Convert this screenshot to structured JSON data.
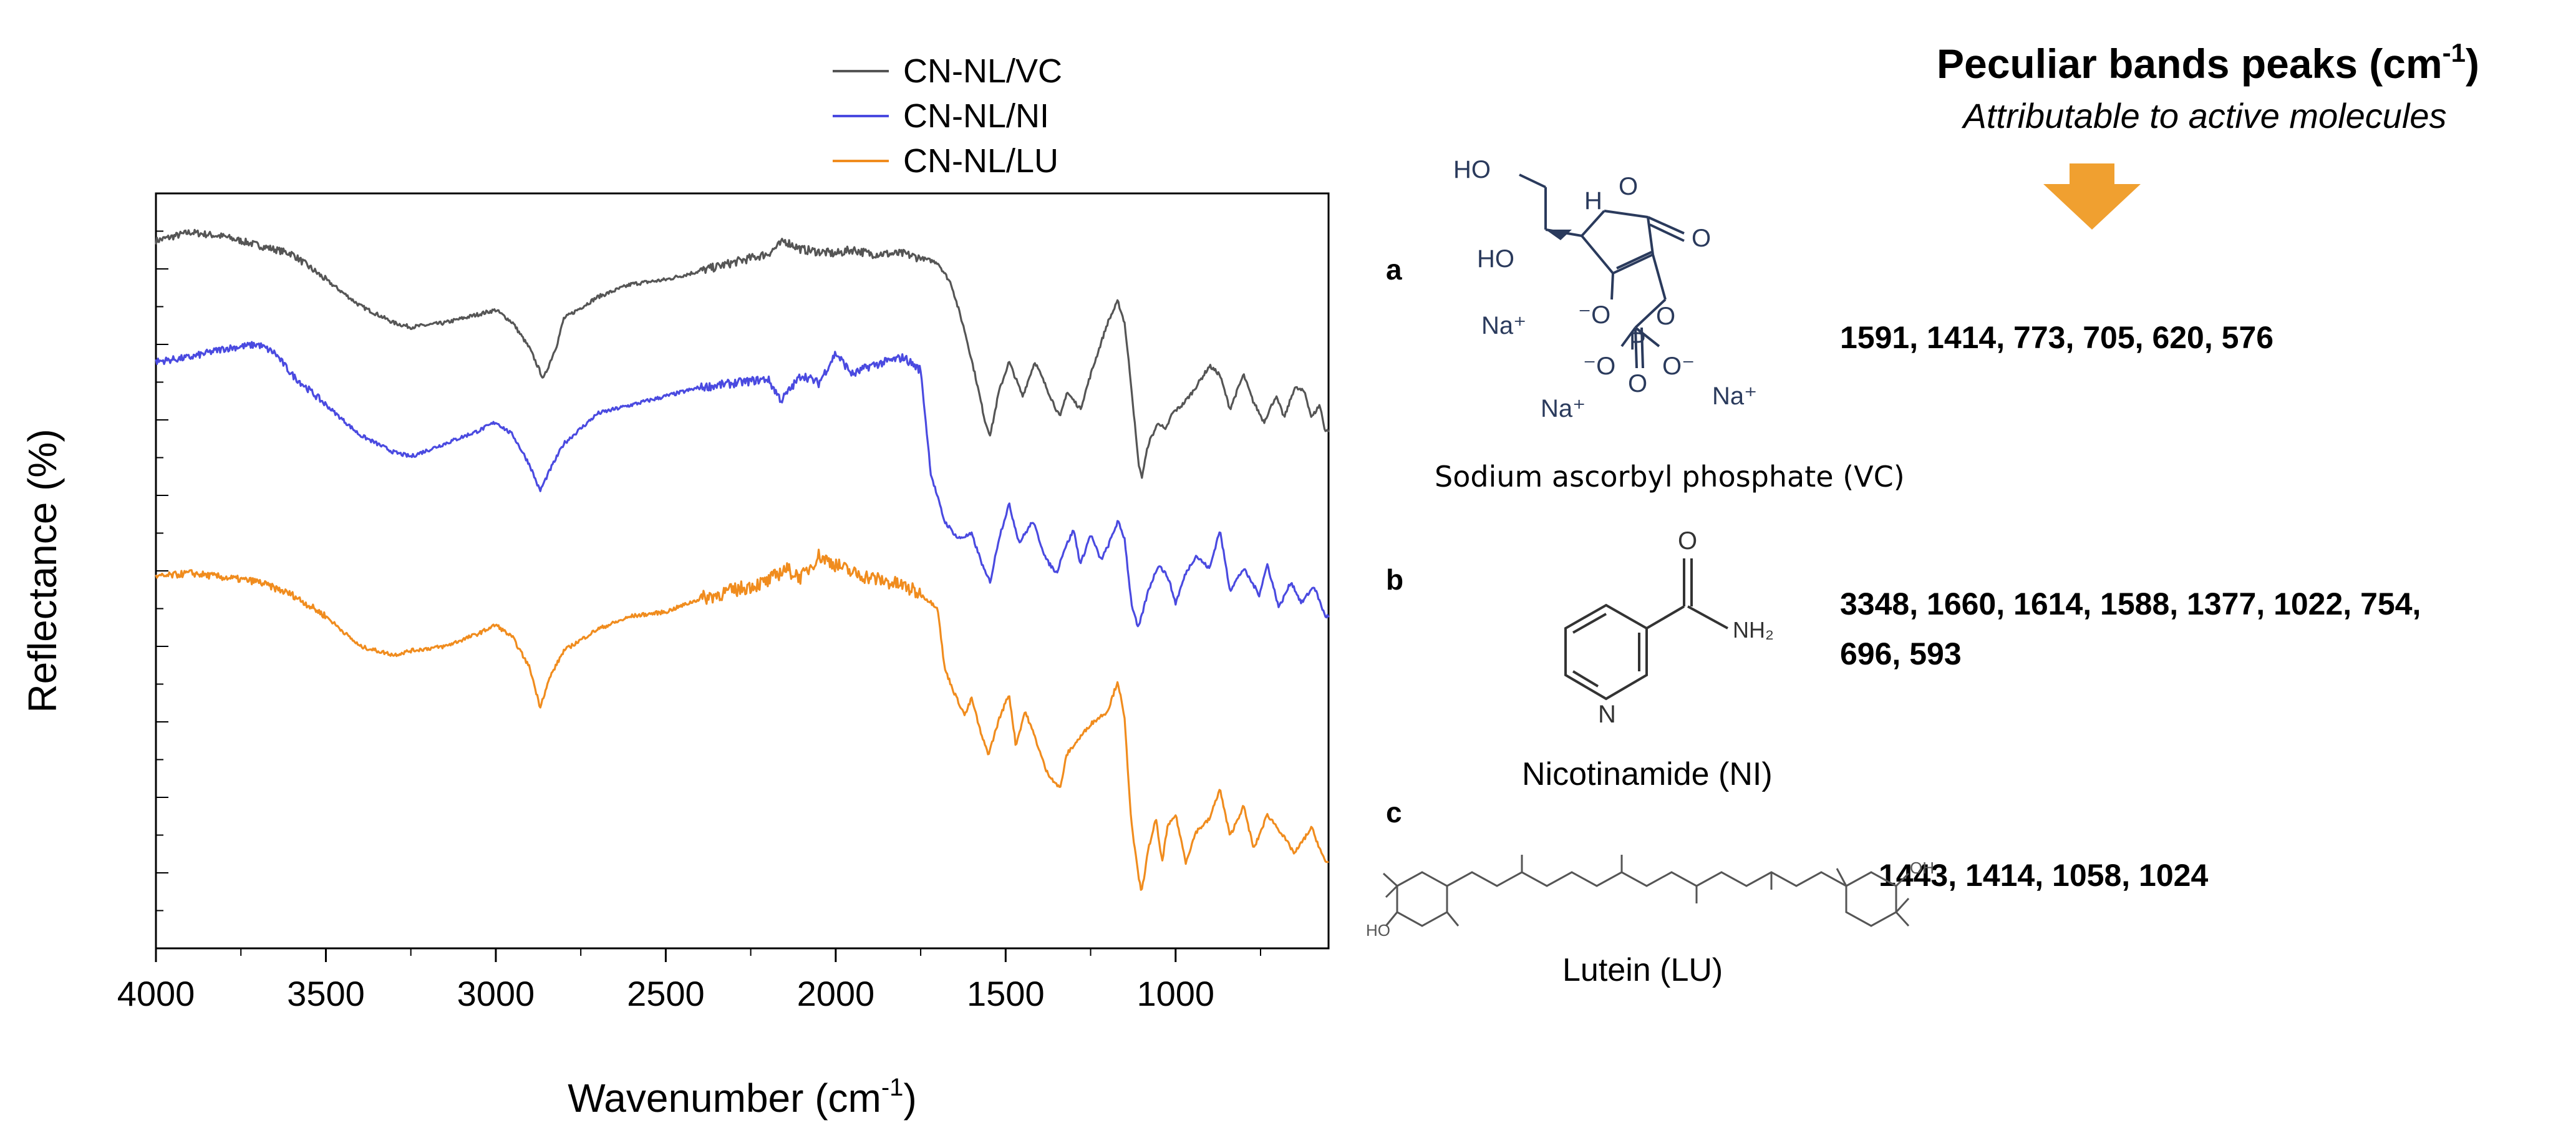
{
  "chart_data": {
    "type": "line",
    "xlabel": "Wavenumber (cm",
    "xlabel_sup": "-1",
    "xlabel_end": ")",
    "ylabel": "Reflectance (%)",
    "xlim": [
      4000,
      550
    ],
    "x_reversed": true,
    "x_ticks": [
      "4000",
      "3500",
      "3000",
      "2500",
      "2000",
      "1500",
      "1000"
    ],
    "grid": false,
    "legend_position": "top-center",
    "series": [
      {
        "name": "CN-NL/VC",
        "color": "#555555",
        "x": [
          4000,
          3900,
          3800,
          3700,
          3600,
          3500,
          3400,
          3300,
          3250,
          3150,
          3100,
          3000,
          2950,
          2900,
          2860,
          2820,
          2800,
          2700,
          2600,
          2500,
          2400,
          2300,
          2200,
          2150,
          2100,
          2000,
          1950,
          1900,
          1800,
          1750,
          1700,
          1660,
          1620,
          1590,
          1560,
          1545,
          1520,
          1490,
          1450,
          1414,
          1380,
          1340,
          1320,
          1280,
          1250,
          1200,
          1170,
          1150,
          1130,
          1110,
          1100,
          1080,
          1050,
          1030,
          1010,
          980,
          950,
          900,
          870,
          840,
          800,
          773,
          740,
          705,
          680,
          650,
          620,
          600,
          576,
          560
        ],
        "values": [
          89,
          91,
          90,
          88,
          86,
          80,
          74,
          70,
          69,
          70,
          71,
          73,
          70,
          64,
          57,
          65,
          71,
          76,
          79,
          80,
          82,
          84,
          86,
          89,
          87,
          86,
          87,
          86,
          86,
          85,
          84,
          79,
          68,
          58,
          47,
          44,
          54,
          61,
          53,
          61,
          55,
          48,
          54,
          50,
          58,
          70,
          75,
          70,
          55,
          38,
          34,
          42,
          47,
          45,
          49,
          51,
          54,
          60,
          58,
          50,
          58,
          52,
          47,
          53,
          48,
          55,
          54,
          48,
          51,
          45
        ]
      },
      {
        "name": "CN-NL/NI",
        "color": "#4a4ae0",
        "x": [
          4000,
          3900,
          3800,
          3700,
          3650,
          3600,
          3500,
          3400,
          3300,
          3250,
          3150,
          3050,
          3000,
          2950,
          2900,
          2870,
          2840,
          2800,
          2700,
          2600,
          2500,
          2400,
          2300,
          2200,
          2160,
          2100,
          2050,
          2000,
          1950,
          1900,
          1800,
          1750,
          1720,
          1680,
          1640,
          1600,
          1560,
          1545,
          1520,
          1490,
          1460,
          1420,
          1380,
          1350,
          1330,
          1300,
          1280,
          1250,
          1220,
          1200,
          1170,
          1150,
          1130,
          1110,
          1100,
          1080,
          1050,
          1022,
          1000,
          970,
          940,
          900,
          870,
          840,
          800,
          754,
          730,
          696,
          660,
          630,
          593,
          560
        ],
        "values": [
          61,
          62,
          64,
          65,
          63,
          58,
          51,
          44,
          40,
          39,
          42,
          45,
          47,
          44,
          37,
          31,
          36,
          42,
          49,
          51,
          53,
          55,
          56,
          57,
          52,
          58,
          56,
          63,
          58,
          60,
          62,
          59,
          35,
          24,
          20,
          21,
          12,
          10,
          20,
          28,
          19,
          24,
          15,
          12,
          17,
          22,
          14,
          21,
          15,
          18,
          24,
          20,
          5,
          -1,
          2,
          8,
          14,
          11,
          5,
          12,
          16,
          13,
          22,
          8,
          13,
          7,
          14,
          4,
          10,
          5,
          9,
          2
        ]
      },
      {
        "name": "CN-NL/LU",
        "color": "#f08c1e",
        "x": [
          4000,
          3900,
          3800,
          3700,
          3600,
          3500,
          3400,
          3300,
          3250,
          3150,
          3050,
          3000,
          2950,
          2900,
          2870,
          2840,
          2800,
          2700,
          2600,
          2500,
          2400,
          2300,
          2200,
          2150,
          2100,
          2050,
          2000,
          1950,
          1900,
          1800,
          1750,
          1700,
          1680,
          1650,
          1620,
          1600,
          1570,
          1550,
          1520,
          1490,
          1470,
          1443,
          1414,
          1380,
          1340,
          1320,
          1280,
          1250,
          1200,
          1170,
          1150,
          1130,
          1110,
          1100,
          1080,
          1058,
          1040,
          1024,
          1000,
          970,
          940,
          900,
          870,
          840,
          800,
          770,
          730,
          700,
          650,
          600,
          560
        ],
        "values": [
          11,
          12,
          11,
          10,
          7,
          2,
          -5,
          -7,
          -6,
          -5,
          -2,
          0,
          -3,
          -10,
          -19,
          -12,
          -6,
          -1,
          2,
          3,
          6,
          8,
          10,
          13,
          11,
          16,
          14,
          12,
          11,
          9,
          7,
          4,
          -10,
          -16,
          -21,
          -17,
          -26,
          -30,
          -22,
          -16,
          -28,
          -20,
          -26,
          -34,
          -38,
          -30,
          -26,
          -23,
          -20,
          -13,
          -22,
          -46,
          -58,
          -62,
          -52,
          -45,
          -55,
          -47,
          -44,
          -55,
          -48,
          -45,
          -38,
          -49,
          -42,
          -52,
          -44,
          -47,
          -53,
          -47,
          -55
        ]
      }
    ]
  },
  "panel": {
    "title": "Peculiar bands peaks (cm",
    "title_sup": "-1",
    "title_end": ")",
    "subtitle": "Attributable to active molecules",
    "arrow_color": "#f0a030",
    "items": [
      {
        "letter": "a",
        "compound": "Sodium ascorbyl phosphate  (VC)",
        "peaks_line1": "1591, 1414, 773, 705, 620, 576",
        "peaks_line2": "",
        "structure_labels": [
          "HO",
          "HO",
          "H",
          "O",
          "O",
          "Na⁺",
          "⁻O",
          "O",
          "P",
          "O",
          "⁻O",
          "O⁻",
          "Na⁺",
          "Na⁺"
        ]
      },
      {
        "letter": "b",
        "compound": "Nicotinamide (NI)",
        "peaks_line1": "3348, 1660, 1614, 1588, 1377, 1022, 754,",
        "peaks_line2": "696, 593",
        "structure_labels": [
          "O",
          "NH₂",
          "N"
        ]
      },
      {
        "letter": "c",
        "compound": "Lutein (LU)",
        "peaks_line1": "1443, 1414, 1058, 1024",
        "peaks_line2": "",
        "structure_labels": [
          "OH",
          "HO"
        ]
      }
    ]
  }
}
